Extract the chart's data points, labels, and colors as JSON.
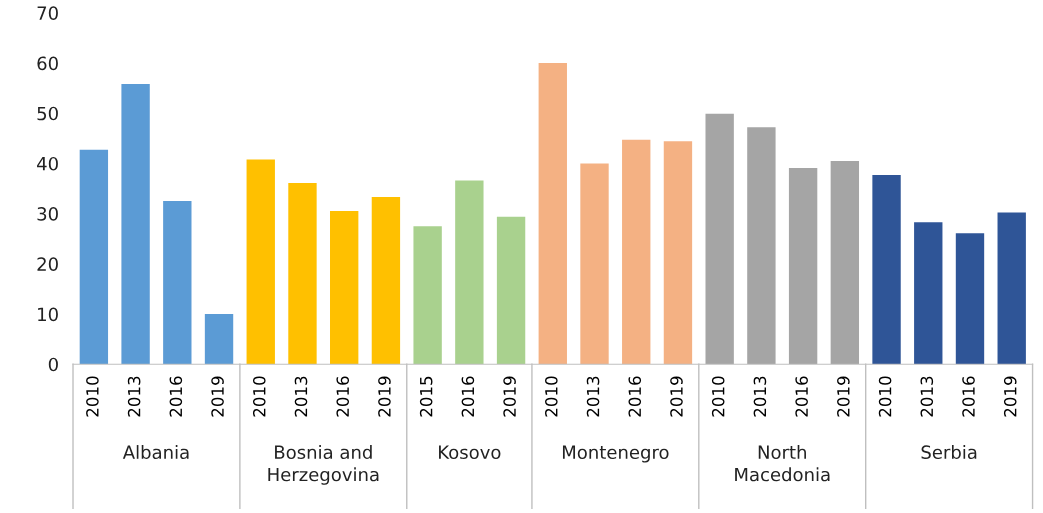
{
  "chart_data": {
    "type": "bar",
    "categories": [
      "2010",
      "2013",
      "2016",
      "2019",
      "2010",
      "2013",
      "2016",
      "2019",
      "2015",
      "2016",
      "2019",
      "2010",
      "2013",
      "2016",
      "2019",
      "2010",
      "2013",
      "2016",
      "2019",
      "2010",
      "2013",
      "2016",
      "2019"
    ],
    "values": [
      42.7,
      55.8,
      32.5,
      10.0,
      40.8,
      36.1,
      30.5,
      33.3,
      27.5,
      36.6,
      29.4,
      60.0,
      40.0,
      44.7,
      44.4,
      49.9,
      47.2,
      39.1,
      40.5,
      37.7,
      28.3,
      26.1,
      30.2
    ],
    "colors": [
      "#5b9bd5",
      "#5b9bd5",
      "#5b9bd5",
      "#5b9bd5",
      "#ffc000",
      "#ffc000",
      "#ffc000",
      "#ffc000",
      "#a9d18e",
      "#a9d18e",
      "#a9d18e",
      "#f4b183",
      "#f4b183",
      "#f4b183",
      "#f4b183",
      "#a5a5a5",
      "#a5a5a5",
      "#a5a5a5",
      "#a5a5a5",
      "#2f5597",
      "#2f5597",
      "#2f5597",
      "#2f5597"
    ],
    "annotations": [
      "Albania",
      "Bosnia and\nHerzegovina",
      "Kosovo",
      "Montenegro",
      "North\nMacedonia",
      "Serbia"
    ],
    "ylim": [
      0,
      70
    ],
    "yticks": [
      0,
      10,
      20,
      30,
      40,
      50,
      60,
      70
    ],
    "grid": false
  }
}
